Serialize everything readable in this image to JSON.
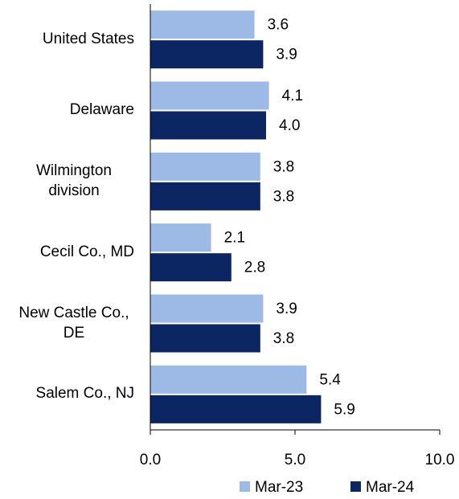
{
  "chart_data": {
    "type": "bar",
    "orientation": "horizontal",
    "categories": [
      "United States",
      "Delaware",
      "Wilmington division",
      "Cecil Co., MD",
      "New Castle Co., DE",
      "Salem Co., NJ"
    ],
    "series": [
      {
        "name": "Mar-23",
        "color": "#9dbae6",
        "values": [
          3.6,
          4.1,
          3.8,
          2.1,
          3.9,
          5.4
        ],
        "value_labels": [
          "3.6",
          "4.1",
          "3.8",
          "2.1",
          "3.9",
          "5.4"
        ]
      },
      {
        "name": "Mar-24",
        "color": "#0c2663",
        "values": [
          3.9,
          4.0,
          3.8,
          2.8,
          3.8,
          5.9
        ],
        "value_labels": [
          "3.9",
          "4.0",
          "3.8",
          "2.8",
          "3.8",
          "5.9"
        ]
      }
    ],
    "xlim": [
      0,
      10
    ],
    "xticks": [
      {
        "value": 0,
        "label": "0.0"
      },
      {
        "value": 5,
        "label": "5.0"
      },
      {
        "value": 10,
        "label": "10.0"
      }
    ],
    "legend": "bottom"
  }
}
